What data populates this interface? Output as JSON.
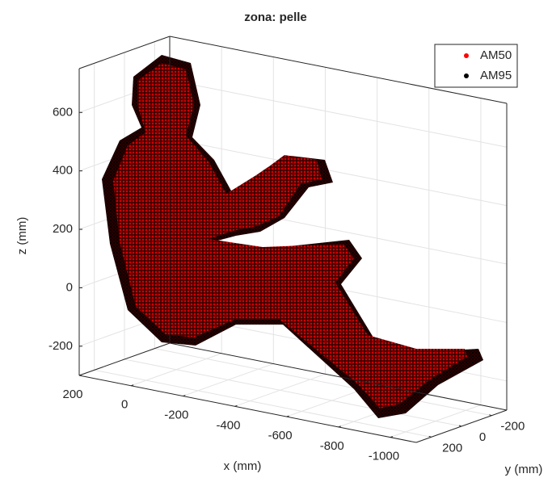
{
  "chart_data": {
    "type": "scatter3d",
    "title": "zona: pelle",
    "xlabel": "x (mm)",
    "ylabel": "y (mm)",
    "zlabel": "z (mm)",
    "xlim": [
      200,
      -1100
    ],
    "ylim": [
      300,
      -300
    ],
    "zlim": [
      -300,
      750
    ],
    "xticks": [
      200,
      0,
      -200,
      -400,
      -600,
      -800,
      -1000
    ],
    "yticks": [
      200,
      0,
      -200
    ],
    "zticks": [
      -200,
      0,
      200,
      400,
      600
    ],
    "grid": true,
    "legend": "upper right",
    "series": [
      {
        "name": "AM50",
        "color": "#ff0000"
      },
      {
        "name": "AM95",
        "color": "#000000"
      }
    ]
  }
}
